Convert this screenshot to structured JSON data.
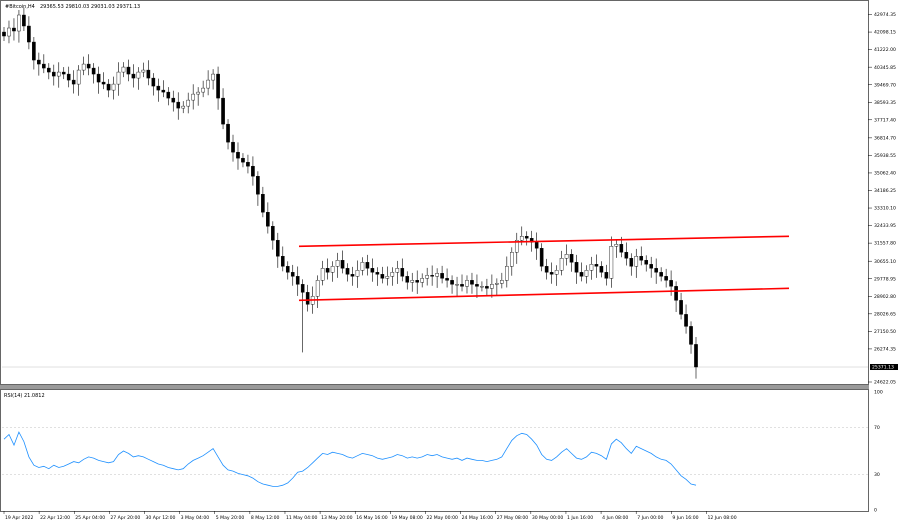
{
  "header": {
    "symbol_info": "#Bitcoin,H4",
    "ohlc": "29365.53 29810.03 29031.03 29371.13"
  },
  "indicator": {
    "label": "RSI(14) 21.0812",
    "levels": [
      "100",
      "70",
      "30",
      "0"
    ]
  },
  "price_axis": {
    "ticks": [
      "42974.35",
      "42098.15",
      "41222.00",
      "40345.85",
      "39469.70",
      "38593.35",
      "37717.40",
      "36814.70",
      "35938.55",
      "35062.40",
      "34186.25",
      "33310.10",
      "32433.95",
      "31557.80",
      "30655.10",
      "29778.95",
      "28902.80",
      "28026.65",
      "27150.50",
      "26274.35",
      "24622.05"
    ],
    "current_price_label": "25371.13"
  },
  "time_axis": {
    "ticks": [
      "19 Apr 2022",
      "22 Apr 12:00",
      "25 Apr 04:00",
      "27 Apr 20:00",
      "30 Apr 12:00",
      "3 May 04:00",
      "5 May 20:00",
      "8 May 12:00",
      "11 May 04:00",
      "13 May 20:00",
      "16 May 16:00",
      "19 May 08:00",
      "22 May 00:00",
      "24 May 16:00",
      "27 May 08:00",
      "30 May 00:00",
      "1 Jun 16:00",
      "4 Jun 08:00",
      "7 Jun 00:00",
      "9 Jun 16:00",
      "12 Jun 08:00"
    ]
  },
  "colors": {
    "candle": "#000000",
    "channel": "#ff0000",
    "rsi": "#1e90ff",
    "grid": "#c0c0c0"
  },
  "chart_data": [
    {
      "type": "line",
      "title": "#Bitcoin,H4",
      "ylim": [
        24622.05,
        43500
      ],
      "grid": true,
      "x_range": [
        "19 Apr 2022",
        "12 Jun 08:00"
      ],
      "series": [
        {
          "values": [
            41900,
            42300,
            42150,
            42950,
            42400,
            41600,
            40700,
            40500,
            40300,
            40100,
            39900,
            40100,
            40000,
            39700,
            39500,
            40200,
            40500,
            40300,
            40000,
            39600,
            39500,
            39200,
            39500,
            40100,
            40350,
            40000,
            39800,
            40100,
            40200,
            39800,
            39400,
            39200,
            39100,
            38800,
            38600,
            38300,
            38400,
            38700,
            39000,
            39100,
            39300,
            39700,
            40000,
            38800,
            37500,
            36600,
            36100,
            35800,
            35600,
            35400,
            34900,
            34000,
            33100,
            32400,
            31700,
            30900,
            30400,
            30100,
            29900,
            29500,
            29100,
            28500,
            28900,
            29700,
            30300,
            30100,
            30400,
            30700,
            30300,
            30000,
            29900,
            30200,
            30600,
            30300,
            30100,
            30000,
            29800,
            29900,
            30100,
            30300,
            29900,
            29600,
            29700,
            29600,
            29800,
            29950,
            29900,
            30050,
            29800,
            29700,
            29500,
            29500,
            29400,
            29700,
            29500,
            29400,
            29400,
            29300,
            29500,
            29550,
            29700,
            30400,
            31100,
            31700,
            31900,
            31800,
            31600,
            31300,
            30400,
            30100,
            30000,
            30200,
            30800,
            31000,
            30600,
            30100,
            29900,
            30200,
            30500,
            30400,
            30100,
            29800,
            31400,
            31500,
            31100,
            30800,
            30400,
            30900,
            30700,
            30500,
            30300,
            30100,
            29900,
            29700,
            29400,
            28700,
            28000,
            27400,
            26500,
            25371
          ]
        },
        {
          "name": "channel-upper",
          "values": [
            31400,
            31900
          ]
        },
        {
          "name": "channel-lower",
          "values": [
            28700,
            29300
          ]
        }
      ]
    },
    {
      "type": "line",
      "title": "RSI(14) 21.0812",
      "ylim": [
        0,
        100
      ],
      "grid": false,
      "series": [
        {
          "values": [
            60,
            64,
            55,
            66,
            58,
            45,
            38,
            36,
            37,
            35,
            38,
            36,
            37,
            39,
            41,
            40,
            43,
            45,
            44,
            42,
            41,
            40,
            41,
            47,
            50,
            48,
            45,
            46,
            45,
            43,
            41,
            39,
            38,
            36,
            35,
            34,
            35,
            39,
            42,
            44,
            46,
            49,
            52,
            45,
            38,
            34,
            33,
            31,
            30,
            29,
            27,
            24,
            22,
            21,
            20,
            20,
            21,
            23,
            27,
            32,
            33,
            36,
            40,
            44,
            48,
            47,
            49,
            48,
            47,
            45,
            44,
            46,
            48,
            47,
            46,
            44,
            43,
            44,
            45,
            47,
            46,
            44,
            45,
            44,
            45,
            47,
            46,
            47,
            45,
            44,
            43,
            44,
            42,
            44,
            43,
            42,
            42,
            41,
            42,
            43,
            45,
            52,
            59,
            63,
            65,
            64,
            60,
            55,
            47,
            43,
            42,
            45,
            49,
            52,
            48,
            44,
            43,
            45,
            49,
            48,
            46,
            43,
            56,
            60,
            57,
            52,
            48,
            54,
            52,
            50,
            48,
            45,
            43,
            42,
            39,
            34,
            29,
            26,
            22,
            21
          ]
        }
      ],
      "reference_lines": [
        70,
        30
      ]
    }
  ]
}
